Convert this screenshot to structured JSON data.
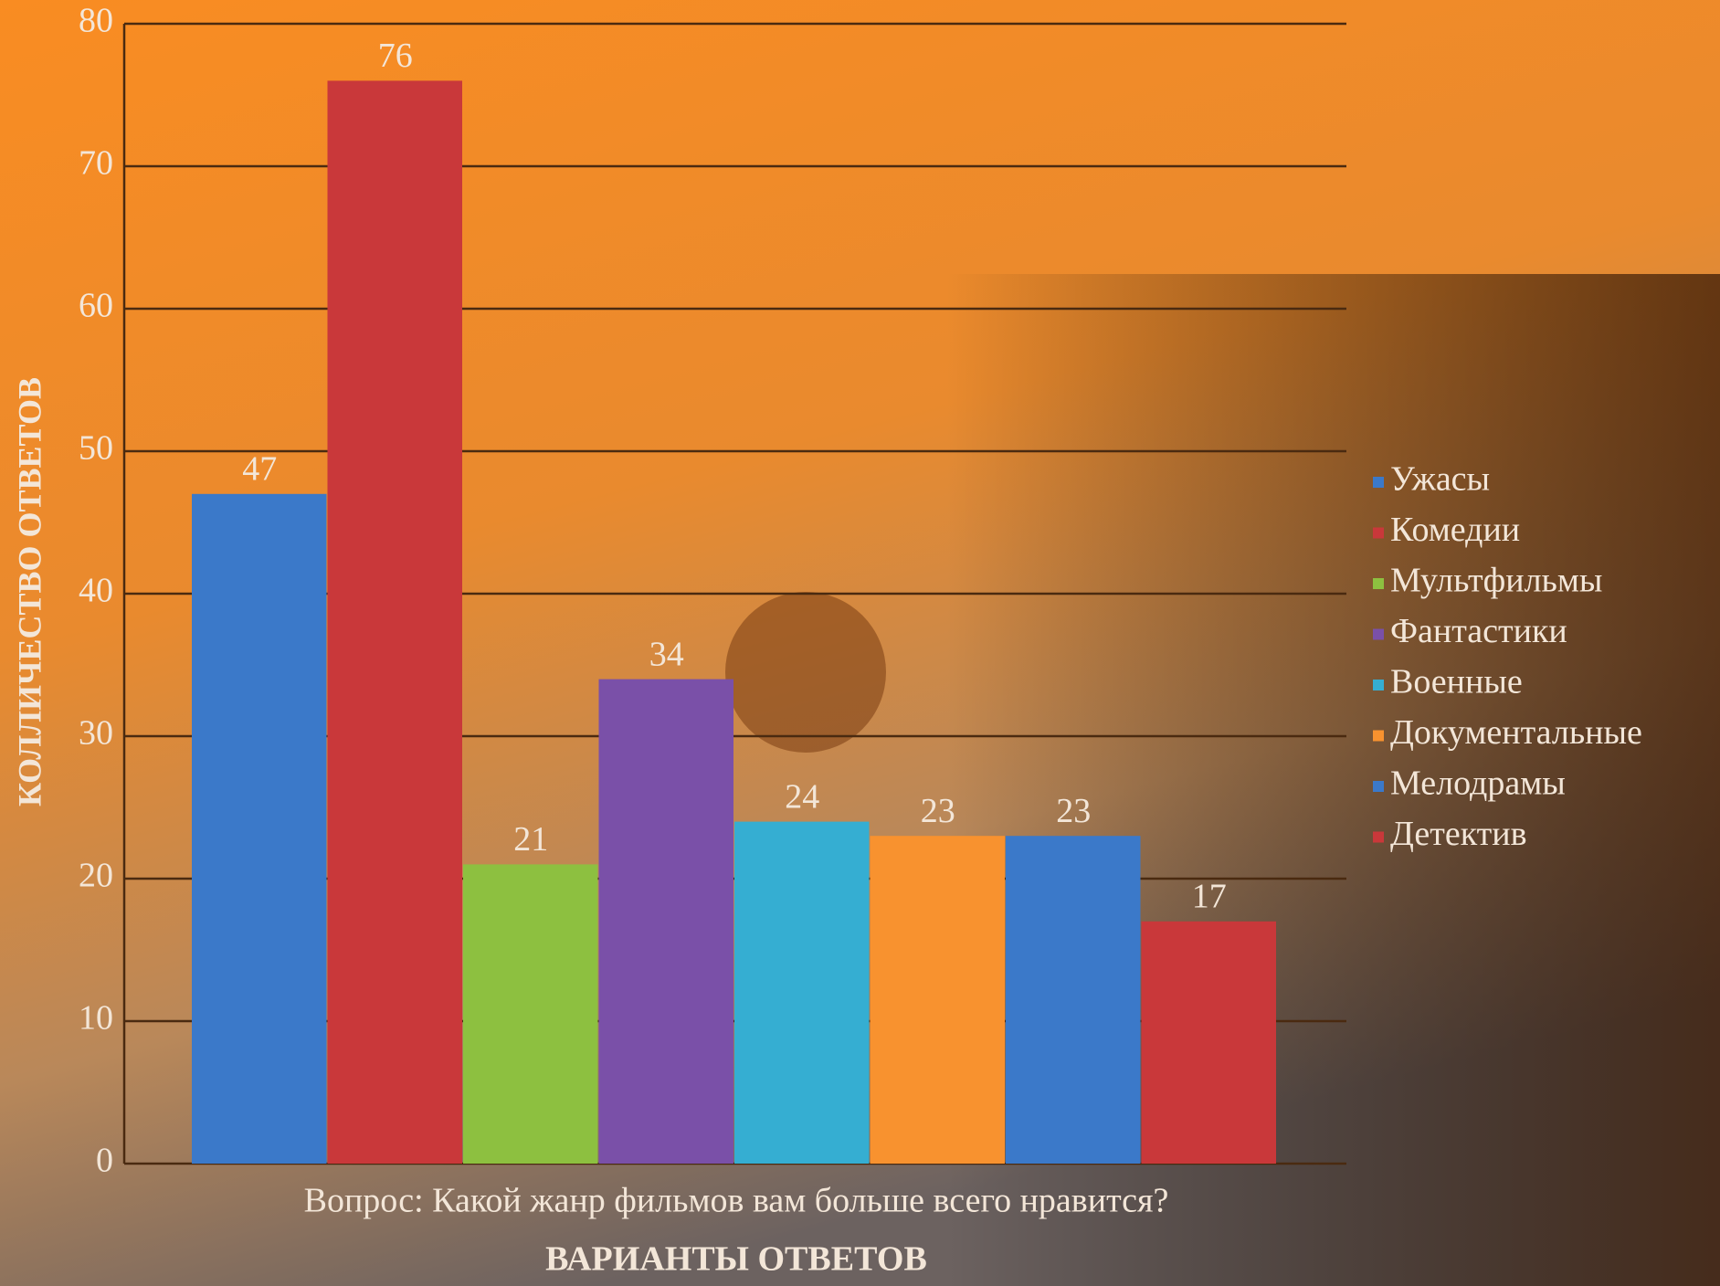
{
  "chart_data": {
    "type": "bar",
    "categories": [
      "Вопрос: Какой жанр фильмов вам больше всего нравится?"
    ],
    "x_label": "ВАРИАНТЫ ОТВЕТОВ",
    "y_label": "КОЛЛИЧЕСТВО ОТВЕТОВ",
    "series": [
      {
        "name": "Ужасы",
        "color": "#3b79c9",
        "values": [
          47
        ]
      },
      {
        "name": "Комедии",
        "color": "#c9383a",
        "values": [
          76
        ]
      },
      {
        "name": "Мультфильмы",
        "color": "#8dc040",
        "values": [
          21
        ]
      },
      {
        "name": "Фантастики",
        "color": "#7a50a8",
        "values": [
          34
        ]
      },
      {
        "name": "Военные",
        "color": "#35aed2",
        "values": [
          24
        ]
      },
      {
        "name": "Документальные",
        "color": "#f8922f",
        "values": [
          23
        ]
      },
      {
        "name": "Мелодрамы",
        "color": "#3b79c9",
        "values": [
          23
        ]
      },
      {
        "name": "Детектив",
        "color": "#c9383a",
        "values": [
          17
        ]
      }
    ],
    "ylim": [
      0,
      80
    ],
    "yticks": [
      0,
      10,
      20,
      30,
      40,
      50,
      60,
      70,
      80
    ],
    "grid": true,
    "legend": "right"
  }
}
